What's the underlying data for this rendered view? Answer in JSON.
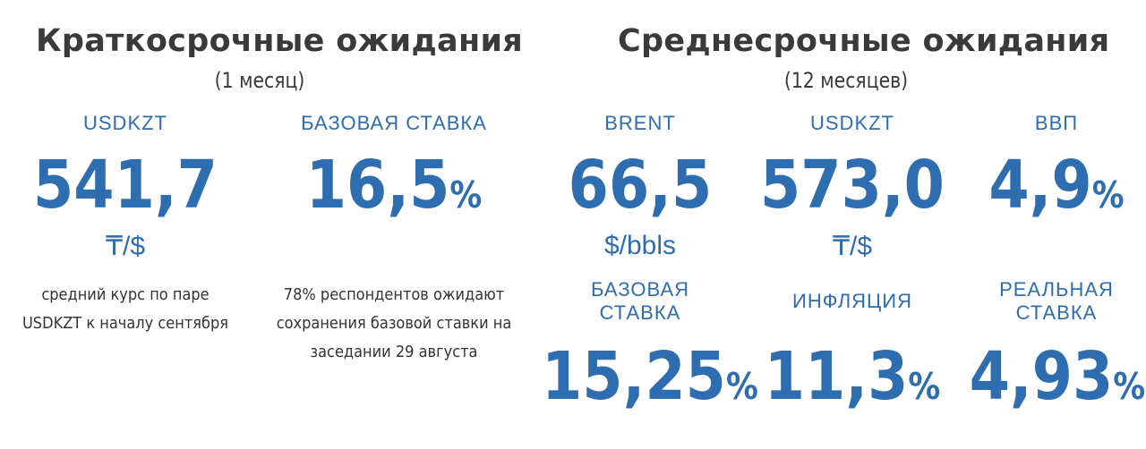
{
  "short_term": {
    "title": "Краткосрочные ожидания",
    "period": "(1 месяц)",
    "usdkzt": {
      "label": "USDKZT",
      "value": "541,7",
      "unit": "₸/$",
      "note_line1": "средний курс по паре",
      "note_line2": "USDKZT к началу сентября"
    },
    "base_rate": {
      "label": "БАЗОВАЯ СТАВКА",
      "value": "16,5",
      "pct": "%",
      "note_line1": "78% респондентов ожидают",
      "note_line2": "сохранения базовой ставки на",
      "note_line3": "заседании 29 августа"
    }
  },
  "medium_term": {
    "title": "Среднесрочные ожидания",
    "period": "(12 месяцев)",
    "brent": {
      "label": "BRENT",
      "value": "66,5",
      "unit": "$/bbls"
    },
    "usdkzt": {
      "label": "USDKZT",
      "value": "573,0",
      "unit": "₸/$"
    },
    "gdp": {
      "label": "ВВП",
      "value": "4,9",
      "pct": "%"
    },
    "base_rate": {
      "label_line1": "БАЗОВАЯ",
      "label_line2": "СТАВКА",
      "value": "15,25",
      "pct": "%"
    },
    "inflation": {
      "label": "ИНФЛЯЦИЯ",
      "value": "11,3",
      "pct": "%"
    },
    "real_rate": {
      "label_line1": "РЕАЛЬНАЯ",
      "label_line2": "СТАВКА",
      "value": "4,93",
      "pct": "%"
    }
  },
  "colors": {
    "accent": "#2e6db0",
    "heading": "#3a3a3a",
    "text": "#333333",
    "background": "#ffffff"
  }
}
